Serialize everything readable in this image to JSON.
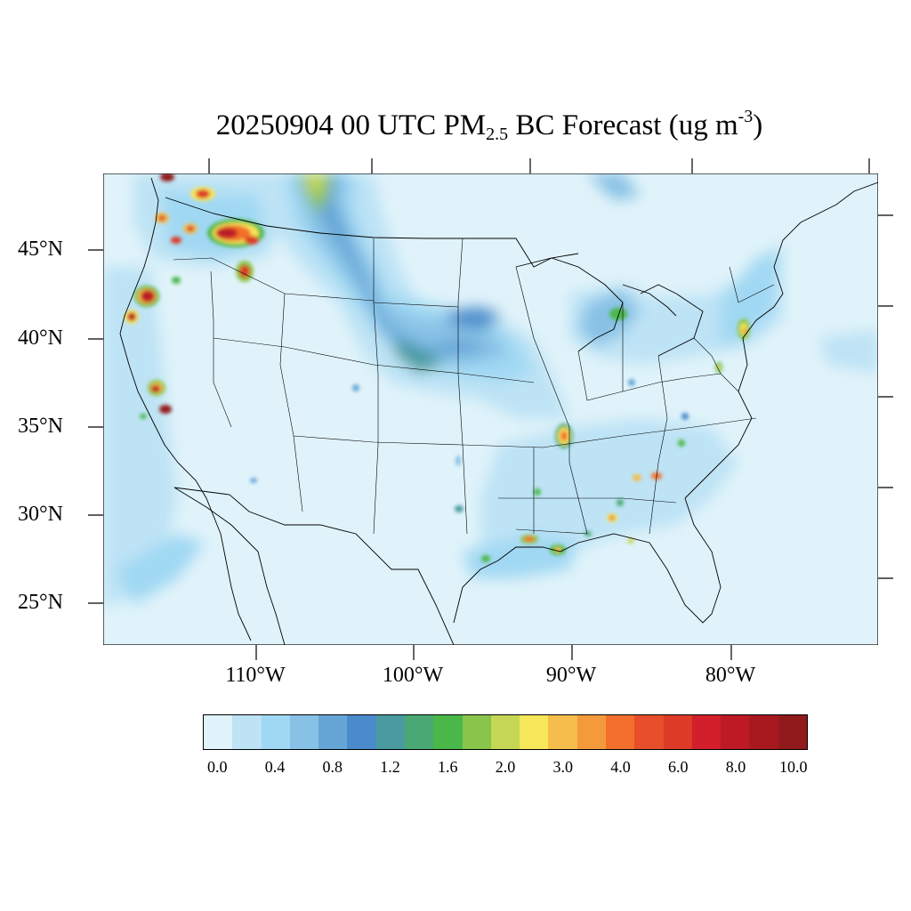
{
  "title": {
    "prefix": "20250904 00 UTC PM",
    "subscript": "2.5",
    "middle": " BC Forecast (ug m",
    "superscript": "-3",
    "suffix": ")"
  },
  "map": {
    "projection": "lambert-conformal",
    "region": "CONUS",
    "lat_labels": [
      "45°N",
      "40°N",
      "35°N",
      "30°N",
      "25°N"
    ],
    "lon_labels": [
      "110°W",
      "100°W",
      "90°W",
      "80°W"
    ],
    "background_level_color": "#e0f3fa",
    "hotspots": [
      {
        "name": "NW Montana / Idaho fires",
        "max_level": "10.0"
      },
      {
        "name": "Northern California fires",
        "max_level": "10.0"
      },
      {
        "name": "Central California fires",
        "max_level": "10.0"
      },
      {
        "name": "Washington fires",
        "max_level": "8.0"
      },
      {
        "name": "Memphis area",
        "max_level": "4.0"
      },
      {
        "name": "Louisiana coast",
        "max_level": "4.0"
      },
      {
        "name": "New York City area",
        "max_level": "3.0"
      },
      {
        "name": "Atlanta area",
        "max_level": "4.0"
      }
    ]
  },
  "colorbar": {
    "colors": [
      "#e0f3fa",
      "#bde3f5",
      "#a0d8f3",
      "#87c1e5",
      "#66a6d7",
      "#4a8bcb",
      "#4a9ba0",
      "#4aa874",
      "#4ab848",
      "#88c54a",
      "#c6d655",
      "#f7e75a",
      "#f5bd4b",
      "#f59a3c",
      "#f36f2b",
      "#e74e2b",
      "#dd3a27",
      "#d21f2b",
      "#bd1a25",
      "#a8191f",
      "#911a1c"
    ],
    "labels": [
      "0.0",
      "0.4",
      "0.8",
      "1.2",
      "1.6",
      "2.0",
      "3.0",
      "4.0",
      "6.0",
      "8.0",
      "10.0"
    ]
  }
}
